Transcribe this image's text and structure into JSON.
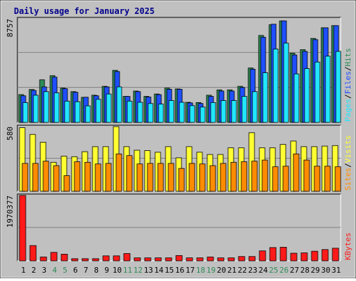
{
  "title": "Daily usage for January 2025",
  "chart_data": {
    "type": "bar",
    "title": "Daily usage for January 2025",
    "categories": [
      "1",
      "2",
      "3",
      "4",
      "5",
      "6",
      "7",
      "8",
      "9",
      "10",
      "11",
      "12",
      "13",
      "14",
      "15",
      "16",
      "17",
      "18",
      "19",
      "20",
      "21",
      "22",
      "23",
      "24",
      "25",
      "26",
      "27",
      "28",
      "29",
      "30",
      "31"
    ],
    "weekend_days": [
      "4",
      "5",
      "11",
      "12",
      "18",
      "19",
      "25",
      "26"
    ],
    "colors": {
      "hits": "#2e8b57",
      "files": "#1f4fff",
      "pages": "#22e6ff",
      "visits": "#ffff33",
      "sites": "#ff8c00",
      "kbytes": "#ff1a1a",
      "plot_bg": "#c0c0c0",
      "weekend_label": "#2e8b57"
    },
    "panels": [
      {
        "name": "hits-files-pages",
        "ymax_label": "8757",
        "ymax": 8757,
        "legend": [
          "Pages",
          "Files",
          "Hits"
        ],
        "series": [
          {
            "name": "Hits",
            "values": [
              2350,
              2780,
              3600,
              3950,
              2900,
              2600,
              2120,
              2300,
              3050,
              4400,
              2200,
              2650,
              2200,
              2400,
              2900,
              2830,
              1700,
              1680,
              2300,
              2750,
              2750,
              3050,
              4600,
              7350,
              8250,
              8580,
              5850,
              6150,
              7100,
              8000,
              8180
            ]
          },
          {
            "name": "Files",
            "values": [
              2250,
              2700,
              3000,
              3830,
              2850,
              2550,
              2130,
              2250,
              3000,
              4300,
              2200,
              2600,
              2150,
              2350,
              2800,
              2800,
              1650,
              1600,
              2200,
              2650,
              2650,
              2950,
              4500,
              7200,
              8300,
              8580,
              5700,
              6000,
              7000,
              8000,
              8180
            ]
          },
          {
            "name": "Pages",
            "values": [
              1680,
              2300,
              2600,
              2500,
              1800,
              1750,
              1400,
              1950,
              2400,
              3000,
              1800,
              1700,
              1600,
              1550,
              1850,
              1700,
              1420,
              1300,
              1680,
              1850,
              1850,
              2200,
              2600,
              4200,
              6200,
              6700,
              4100,
              4550,
              5100,
              5600,
              6000
            ]
          }
        ]
      },
      {
        "name": "visits-sites",
        "ymax_label": "580",
        "ymax": 580,
        "legend": [
          "Sites",
          "Visits"
        ],
        "series": [
          {
            "name": "Visits",
            "values": [
              570,
              510,
              440,
              260,
              315,
              310,
              355,
              400,
              400,
              580,
              400,
              368,
              365,
              350,
              400,
              300,
              400,
              350,
              330,
              330,
              390,
              390,
              525,
              390,
              390,
              420,
              450,
              400,
              400,
              405,
              410
            ]
          },
          {
            "name": "Sites",
            "values": [
              250,
              250,
              270,
              230,
              140,
              265,
              260,
              245,
              250,
              335,
              320,
              245,
              250,
              250,
              250,
              205,
              250,
              245,
              230,
              250,
              260,
              265,
              270,
              280,
              220,
              225,
              335,
              280,
              225,
              225,
              220
            ]
          }
        ]
      },
      {
        "name": "kbytes",
        "ymax_label": "1970377",
        "ymax": 1970377,
        "legend": [
          "KBytes"
        ],
        "series": [
          {
            "name": "KBytes",
            "values": [
              1970377,
              460000,
              115000,
              255000,
              200000,
              65000,
              65000,
              65000,
              150000,
              150000,
              220000,
              90000,
              90000,
              90000,
              90000,
              160000,
              90000,
              90000,
              115000,
              90000,
              90000,
              130000,
              130000,
              300000,
              400000,
              410000,
              230000,
              240000,
              290000,
              340000,
              380000
            ]
          }
        ]
      }
    ]
  }
}
